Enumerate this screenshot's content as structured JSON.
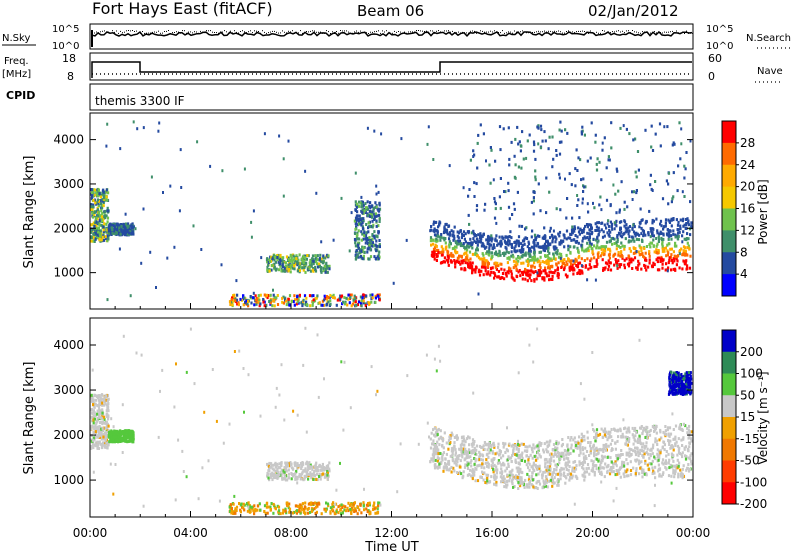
{
  "header": {
    "station": "Fort Hays East (fitACF)",
    "beam": "Beam 06",
    "date": "02/Jan/2012"
  },
  "summary_panel": {
    "nsky_label": "N.Sky",
    "nsky_ticks": [
      "10^5",
      "10^0"
    ],
    "nsearch_label": "N.Search",
    "nsearch_ticks": [
      "10^5",
      "10^0"
    ],
    "freq_label": "Freq.",
    "freq_unit": "[MHz]",
    "freq_ticks": [
      "18",
      "8"
    ],
    "nave_label": "Nave",
    "nave_ticks": [
      "60",
      "0"
    ],
    "cpid_label": "CPID",
    "cpid_value": "themis 3300 IF"
  },
  "chart_data": [
    {
      "type": "heatmap",
      "panel": "power",
      "ylabel": "Slant Range [km]",
      "x_ticks": [
        "00:00",
        "04:00",
        "08:00",
        "12:00",
        "16:00",
        "20:00",
        "00:00"
      ],
      "y_ticks": [
        "1000",
        "2000",
        "3000",
        "4000"
      ],
      "xlim_hours": [
        0,
        24
      ],
      "ylim_km": [
        180,
        4600
      ],
      "colorbar": {
        "label": "Power [dB]",
        "ticks": [
          "28",
          "24",
          "20",
          "16",
          "12",
          "8",
          "4"
        ],
        "colors": [
          "#ff0000",
          "#ff6a00",
          "#ffaa00",
          "#f5c800",
          "#6fc24d",
          "#3f8f6a",
          "#244aa0",
          "#0000ff"
        ]
      },
      "regions": [
        {
          "t": [
            0.0,
            0.7
          ],
          "r": [
            1700,
            2900
          ],
          "level": "mid-high"
        },
        {
          "t": [
            0.7,
            1.7
          ],
          "r": [
            1850,
            2100
          ],
          "level": "low"
        },
        {
          "t": [
            7.0,
            9.5
          ],
          "r": [
            1000,
            1400
          ],
          "level": "mid"
        },
        {
          "t": [
            5.5,
            11.5
          ],
          "r": [
            250,
            500
          ],
          "level": "mixed"
        },
        {
          "t": [
            10.5,
            11.5
          ],
          "r": [
            1300,
            2600
          ],
          "level": "low-mid"
        },
        {
          "t": [
            13.5,
            23.9
          ],
          "r": [
            800,
            2200
          ],
          "level": "high"
        },
        {
          "t": [
            15.0,
            23.9
          ],
          "r": [
            1800,
            4400
          ],
          "level": "low"
        }
      ]
    },
    {
      "type": "heatmap",
      "panel": "velocity",
      "ylabel": "Slant Range [km]",
      "xlabel": "Time UT",
      "x_ticks": [
        "00:00",
        "04:00",
        "08:00",
        "12:00",
        "16:00",
        "20:00",
        "00:00"
      ],
      "y_ticks": [
        "1000",
        "2000",
        "3000",
        "4000"
      ],
      "xlim_hours": [
        0,
        24
      ],
      "ylim_km": [
        180,
        4600
      ],
      "colorbar": {
        "label": "Velocity [m s⁻¹]",
        "ticks": [
          "200",
          "100",
          "50",
          "15",
          "-15",
          "-50",
          "-100",
          "-200"
        ],
        "colors": [
          "#0000c8",
          "#2e8b57",
          "#55c83c",
          "#c8c8c8",
          "#f0a000",
          "#f07800",
          "#ff3c00",
          "#ff0000"
        ]
      },
      "regions": [
        {
          "t": [
            0.0,
            0.7
          ],
          "r": [
            1700,
            2900
          ],
          "level": "ground"
        },
        {
          "t": [
            0.7,
            1.7
          ],
          "r": [
            1850,
            2100
          ],
          "level": "+50"
        },
        {
          "t": [
            7.0,
            9.5
          ],
          "r": [
            1000,
            1400
          ],
          "level": "ground"
        },
        {
          "t": [
            5.5,
            11.5
          ],
          "r": [
            250,
            500
          ],
          "level": "-50"
        },
        {
          "t": [
            13.5,
            23.9
          ],
          "r": [
            800,
            2200
          ],
          "level": "ground"
        },
        {
          "t": [
            23.0,
            23.9
          ],
          "r": [
            2900,
            3400
          ],
          "level": "+200"
        }
      ]
    }
  ]
}
